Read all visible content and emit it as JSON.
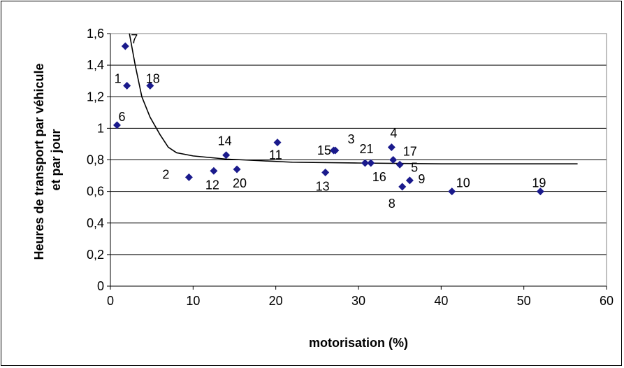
{
  "chart_data": {
    "type": "scatter",
    "xlabel": "motorisation (%)",
    "ylabel_lines": [
      "Heures de transport par véhicule",
      "et par jour"
    ],
    "xlim": [
      0,
      60
    ],
    "ylim": [
      0,
      1.6
    ],
    "x_ticks": [
      "0",
      "10",
      "20",
      "30",
      "40",
      "50",
      "60"
    ],
    "y_ticks": [
      "0",
      "0,2",
      "0,4",
      "0,6",
      "0,8",
      "1",
      "1,2",
      "1,4",
      "1,6"
    ],
    "grid": "horizontal",
    "legend": "none",
    "marker_color": "#1a1a8c",
    "curve_color": "#000000",
    "points": [
      {
        "label": "1",
        "x": 2.0,
        "y": 1.27
      },
      {
        "label": "2",
        "x": 9.5,
        "y": 0.69
      },
      {
        "label": "3",
        "x": 27.0,
        "y": 0.86
      },
      {
        "label": "4",
        "x": 34.0,
        "y": 0.88
      },
      {
        "label": "5",
        "x": 35.0,
        "y": 0.77
      },
      {
        "label": "6",
        "x": 0.8,
        "y": 1.02
      },
      {
        "label": "7",
        "x": 1.8,
        "y": 1.52
      },
      {
        "label": "8",
        "x": 35.3,
        "y": 0.63
      },
      {
        "label": "9",
        "x": 36.2,
        "y": 0.67
      },
      {
        "label": "10",
        "x": 41.3,
        "y": 0.6
      },
      {
        "label": "11",
        "x": 20.2,
        "y": 0.91
      },
      {
        "label": "12",
        "x": 12.5,
        "y": 0.73
      },
      {
        "label": "13",
        "x": 26.0,
        "y": 0.72
      },
      {
        "label": "14",
        "x": 14.0,
        "y": 0.83
      },
      {
        "label": "15",
        "x": 27.2,
        "y": 0.86
      },
      {
        "label": "16",
        "x": 31.5,
        "y": 0.78
      },
      {
        "label": "17",
        "x": 34.2,
        "y": 0.8
      },
      {
        "label": "18",
        "x": 4.8,
        "y": 1.27
      },
      {
        "label": "19",
        "x": 52.0,
        "y": 0.6
      },
      {
        "label": "20",
        "x": 15.3,
        "y": 0.74
      },
      {
        "label": "21",
        "x": 30.8,
        "y": 0.78
      }
    ],
    "trend_curve": [
      {
        "x": 2.3,
        "y": 1.6
      },
      {
        "x": 3.0,
        "y": 1.4
      },
      {
        "x": 3.8,
        "y": 1.2
      },
      {
        "x": 4.8,
        "y": 1.07
      },
      {
        "x": 6.0,
        "y": 0.96
      },
      {
        "x": 7.0,
        "y": 0.88
      },
      {
        "x": 8.0,
        "y": 0.845
      },
      {
        "x": 10.0,
        "y": 0.825
      },
      {
        "x": 14.0,
        "y": 0.805
      },
      {
        "x": 18.0,
        "y": 0.795
      },
      {
        "x": 22.0,
        "y": 0.785
      },
      {
        "x": 30.0,
        "y": 0.78
      },
      {
        "x": 40.0,
        "y": 0.775
      },
      {
        "x": 50.0,
        "y": 0.775
      },
      {
        "x": 56.5,
        "y": 0.775
      }
    ]
  }
}
